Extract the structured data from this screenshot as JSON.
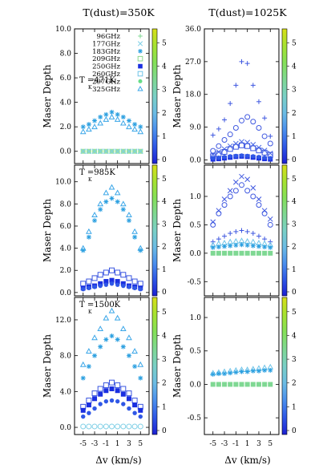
{
  "columns": [
    {
      "title": "T(dust)=350K"
    },
    {
      "title": "T(dust)=1025K"
    }
  ],
  "y_label": "Maser Depth",
  "x_label": "Δv (km/s)",
  "x_ticks": [
    "-5",
    "-3",
    "-1",
    "1",
    "3",
    "5"
  ],
  "kinetic_unit_sub": "K",
  "colorbar_ticks": [
    "0",
    "1",
    "2",
    "3",
    "4",
    "5"
  ],
  "colorbar_colors": [
    "#1c1fd2",
    "#2f57e6",
    "#4b8fed",
    "#6cbce4",
    "#7ad0c6",
    "#7fd893",
    "#84e058",
    "#a6e230",
    "#d7df18"
  ],
  "legend": [
    {
      "label": "96GHz",
      "marker": "plus",
      "color": "#7fd893"
    },
    {
      "label": "177GHz",
      "marker": "x",
      "color": "#7ecfe6"
    },
    {
      "label": "183GHz",
      "marker": "asterisk",
      "color": "#2a9fe0"
    },
    {
      "label": "209GHz",
      "marker": "open-square",
      "color": "#8ed88e"
    },
    {
      "label": "250GHz",
      "marker": "filled-square",
      "color": "#1a2fe0"
    },
    {
      "label": "260GHz",
      "marker": "open-square",
      "color": "#6fc4e8"
    },
    {
      "label": "297GHz",
      "marker": "filled-circle",
      "color": "#66dd88"
    },
    {
      "label": "325GHz",
      "marker": "open-triangle",
      "color": "#3aa6e8"
    }
  ],
  "chart_data": [
    {
      "type": "scatter",
      "row": 0,
      "col": 0,
      "tk": "T =471K",
      "ylim": [
        -1,
        10
      ],
      "yticks": [
        "0.0",
        "2.0",
        "4.0",
        "6.0",
        "8.0",
        "10.0"
      ],
      "ytick_values": [
        0,
        2,
        4,
        6,
        8,
        10
      ],
      "x": [
        -5,
        -4,
        -3,
        -2,
        -1,
        0,
        1,
        2,
        3,
        4,
        5
      ],
      "series": [
        {
          "marker": "asterisk",
          "color": "#2a9fe0",
          "values": [
            2.0,
            2.2,
            2.5,
            2.8,
            3.0,
            3.2,
            3.0,
            2.8,
            2.5,
            2.2,
            2.0
          ]
        },
        {
          "marker": "open-triangle",
          "color": "#3aa6e8",
          "values": [
            1.6,
            1.8,
            2.0,
            2.3,
            2.6,
            2.8,
            2.6,
            2.3,
            2.0,
            1.8,
            1.6
          ]
        },
        {
          "marker": "filled-square",
          "color": "#9be29a",
          "values": [
            0,
            0,
            0,
            0,
            0,
            0,
            0,
            0,
            0,
            0,
            0
          ]
        },
        {
          "marker": "x",
          "color": "#7ecfe6",
          "values": [
            0,
            0,
            0,
            0,
            0,
            0,
            0,
            0,
            0,
            0,
            0
          ]
        }
      ]
    },
    {
      "type": "scatter",
      "row": 0,
      "col": 1,
      "tk": "",
      "ylim": [
        -1,
        36
      ],
      "yticks": [
        "0.0",
        "9.0",
        "18.0",
        "27.0",
        "36.0"
      ],
      "ytick_values": [
        0,
        9,
        18,
        27,
        36
      ],
      "x": [
        -5,
        -4,
        -3,
        -2,
        -1,
        0,
        1,
        2,
        3,
        4,
        5
      ],
      "series": [
        {
          "marker": "plus",
          "color": "#3f58e0",
          "values": [
            6.8,
            8.5,
            11.0,
            15.5,
            20.5,
            27.0,
            26.5,
            20.5,
            16.0,
            11.5,
            6.5
          ]
        },
        {
          "marker": "open-circle",
          "color": "#3f58e0",
          "values": [
            2.5,
            3.8,
            5.5,
            7.0,
            8.8,
            10.8,
            11.8,
            10.5,
            8.8,
            6.5,
            4.5
          ]
        },
        {
          "marker": "x",
          "color": "#4a6ae6",
          "values": [
            1.5,
            2.2,
            3.0,
            3.8,
            4.5,
            5.0,
            4.8,
            4.2,
            3.4,
            2.6,
            1.8
          ]
        },
        {
          "marker": "open-square",
          "color": "#3a55e0",
          "values": [
            1.0,
            1.6,
            2.2,
            3.0,
            3.6,
            4.0,
            3.8,
            3.2,
            2.6,
            2.0,
            1.4
          ]
        },
        {
          "marker": "filled-square",
          "color": "#1a2fe0",
          "values": [
            0.2,
            0.3,
            0.5,
            0.7,
            0.9,
            1.0,
            0.9,
            0.7,
            0.5,
            0.3,
            0.2
          ]
        },
        {
          "marker": "filled-circle",
          "color": "#2f57e6",
          "values": [
            0.5,
            0.6,
            0.8,
            1.0,
            1.1,
            1.2,
            1.1,
            1.0,
            0.8,
            0.6,
            0.5
          ]
        }
      ]
    },
    {
      "type": "scatter",
      "row": 1,
      "col": 0,
      "tk": "T =985K",
      "ylim": [
        -0.3,
        11.5
      ],
      "yticks": [
        "0.0",
        "2.0",
        "4.0",
        "6.0",
        "8.0",
        "10.0"
      ],
      "ytick_values": [
        0,
        2,
        4,
        6,
        8,
        10
      ],
      "x": [
        -5,
        -4,
        -3,
        -2,
        -1,
        0,
        1,
        2,
        3,
        4,
        5
      ],
      "series": [
        {
          "marker": "open-triangle",
          "color": "#3aa6e8",
          "values": [
            4.0,
            5.5,
            7.0,
            8.0,
            9.0,
            9.5,
            9.0,
            8.0,
            7.0,
            5.5,
            4.0
          ]
        },
        {
          "marker": "asterisk",
          "color": "#2a9fe0",
          "values": [
            3.8,
            5.0,
            6.5,
            7.5,
            8.2,
            8.5,
            8.2,
            7.5,
            6.5,
            5.0,
            3.8
          ]
        },
        {
          "marker": "open-square",
          "color": "#3a55e0",
          "values": [
            0.8,
            1.0,
            1.3,
            1.6,
            1.8,
            2.0,
            1.8,
            1.6,
            1.3,
            1.0,
            0.8
          ]
        },
        {
          "marker": "filled-square",
          "color": "#1a2fe0",
          "values": [
            0.4,
            0.5,
            0.6,
            0.8,
            1.0,
            1.1,
            1.0,
            0.8,
            0.6,
            0.5,
            0.4
          ]
        },
        {
          "marker": "filled-circle",
          "color": "#2f57e6",
          "values": [
            0.3,
            0.4,
            0.5,
            0.6,
            0.7,
            0.8,
            0.7,
            0.6,
            0.5,
            0.4,
            0.3
          ]
        }
      ]
    },
    {
      "type": "scatter",
      "row": 1,
      "col": 1,
      "tk": "",
      "ylim": [
        -0.75,
        1.55
      ],
      "yticks": [
        "-0.5",
        "0.0",
        "0.5",
        "1.0"
      ],
      "ytick_values": [
        -0.5,
        0,
        0.5,
        1.0
      ],
      "x": [
        -5,
        -4,
        -3,
        -2,
        -1,
        0,
        1,
        2,
        3,
        4,
        5
      ],
      "series": [
        {
          "marker": "x",
          "color": "#3f58e0",
          "values": [
            0.55,
            0.75,
            0.95,
            1.1,
            1.25,
            1.35,
            1.3,
            1.15,
            0.95,
            0.75,
            0.6
          ]
        },
        {
          "marker": "open-circle",
          "color": "#3f58e0",
          "values": [
            0.5,
            0.7,
            0.85,
            1.0,
            1.1,
            1.2,
            1.1,
            1.0,
            0.85,
            0.7,
            0.5
          ]
        },
        {
          "marker": "plus",
          "color": "#3f58e0",
          "values": [
            0.2,
            0.25,
            0.3,
            0.35,
            0.38,
            0.4,
            0.38,
            0.35,
            0.3,
            0.25,
            0.2
          ]
        },
        {
          "marker": "open-triangle",
          "color": "#6fc4e8",
          "values": [
            0.15,
            0.17,
            0.18,
            0.2,
            0.21,
            0.22,
            0.21,
            0.2,
            0.18,
            0.17,
            0.15
          ]
        },
        {
          "marker": "asterisk",
          "color": "#2a9fe0",
          "values": [
            0.1,
            0.11,
            0.12,
            0.13,
            0.14,
            0.15,
            0.14,
            0.13,
            0.12,
            0.11,
            0.1
          ]
        },
        {
          "marker": "filled-square",
          "color": "#7fd893",
          "values": [
            0.0,
            0.0,
            0.0,
            0.0,
            0.0,
            0.0,
            0.0,
            0.0,
            0.0,
            0.0,
            0.0
          ]
        }
      ]
    },
    {
      "type": "scatter",
      "row": 2,
      "col": 0,
      "tk": "T =1500K",
      "ylim": [
        -0.8,
        14.5
      ],
      "yticks": [
        "0.0",
        "4.0",
        "8.0",
        "12.0"
      ],
      "ytick_values": [
        0,
        4,
        8,
        12
      ],
      "x": [
        -5,
        -4,
        -3,
        -2,
        -1,
        0,
        1,
        2,
        3,
        4,
        5
      ],
      "series": [
        {
          "marker": "open-triangle",
          "color": "#3aa6e8",
          "values": [
            7.0,
            8.5,
            10.0,
            11.0,
            12.2,
            13.0,
            12.2,
            11.0,
            10.0,
            8.5,
            7.0
          ]
        },
        {
          "marker": "asterisk",
          "color": "#2a9fe0",
          "values": [
            5.5,
            6.8,
            8.0,
            9.0,
            9.8,
            10.2,
            9.8,
            9.0,
            8.0,
            6.8,
            5.5
          ]
        },
        {
          "marker": "open-square",
          "color": "#3a55e0",
          "values": [
            2.3,
            3.0,
            3.8,
            4.3,
            4.7,
            5.0,
            4.7,
            4.3,
            3.8,
            3.0,
            2.3
          ]
        },
        {
          "marker": "filled-square",
          "color": "#1a2fe0",
          "values": [
            1.9,
            2.5,
            3.2,
            3.7,
            4.1,
            4.3,
            4.1,
            3.7,
            3.2,
            2.5,
            1.9
          ]
        },
        {
          "marker": "filled-circle",
          "color": "#2f57e6",
          "values": [
            1.2,
            1.6,
            2.1,
            2.6,
            2.9,
            3.0,
            2.9,
            2.6,
            2.1,
            1.6,
            1.2
          ]
        },
        {
          "marker": "open-circle",
          "color": "#7ecfe6",
          "values": [
            0.1,
            0.1,
            0.1,
            0.1,
            0.1,
            0.1,
            0.1,
            0.1,
            0.1,
            0.1,
            0.1
          ]
        }
      ]
    },
    {
      "type": "scatter",
      "row": 2,
      "col": 1,
      "tk": "",
      "ylim": [
        -0.75,
        1.3
      ],
      "yticks": [
        "-0.5",
        "0.0",
        "0.5",
        "1.0"
      ],
      "ytick_values": [
        -0.5,
        0,
        0.5,
        1.0
      ],
      "x": [
        -5,
        -4,
        -3,
        -2,
        -1,
        0,
        1,
        2,
        3,
        4,
        5
      ],
      "series": [
        {
          "marker": "open-triangle",
          "color": "#6fc4e8",
          "values": [
            0.17,
            0.18,
            0.19,
            0.2,
            0.21,
            0.22,
            0.22,
            0.23,
            0.24,
            0.25,
            0.26
          ]
        },
        {
          "marker": "asterisk",
          "color": "#2a9fe0",
          "values": [
            0.15,
            0.16,
            0.16,
            0.17,
            0.18,
            0.19,
            0.19,
            0.2,
            0.2,
            0.21,
            0.21
          ]
        },
        {
          "marker": "filled-square",
          "color": "#7fd893",
          "values": [
            0.0,
            0.0,
            0.0,
            0.0,
            0.0,
            0.0,
            0.0,
            0.0,
            0.0,
            0.0,
            0.0
          ]
        }
      ]
    }
  ]
}
